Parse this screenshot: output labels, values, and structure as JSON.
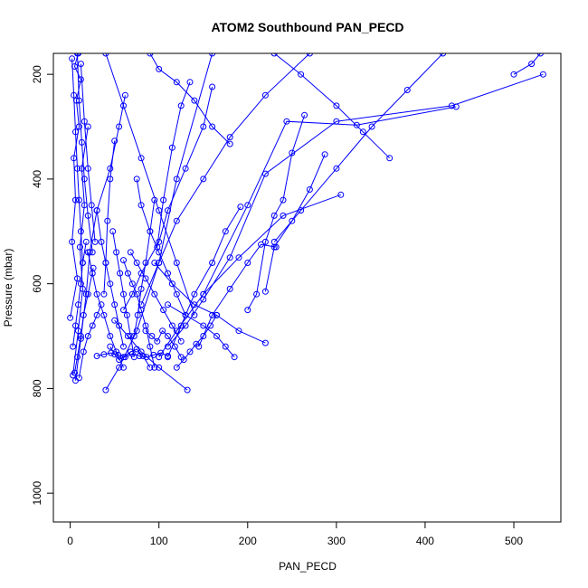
{
  "chart_data": {
    "type": "line",
    "title": "ATOM2 Southbound PAN_PECD",
    "xlabel": "PAN_PECD",
    "ylabel": "Pressure (mbar)",
    "xlim": [
      -19,
      553
    ],
    "ylim": [
      1055,
      160
    ],
    "y_reversed": true,
    "grid": false,
    "legend": "none",
    "x_ticks": [
      0,
      100,
      200,
      300,
      400,
      500
    ],
    "y_ticks": [
      200,
      400,
      600,
      800,
      1000
    ],
    "series_color": "#0000ff",
    "marker": "open-circle",
    "series": [
      {
        "x": [
          0,
          8,
          2,
          6,
          4,
          10,
          7,
          12,
          5,
          9
        ],
        "y": [
          665,
          590,
          520,
          440,
          360,
          300,
          250,
          210,
          185,
          160
        ]
      },
      {
        "x": [
          3,
          9,
          14,
          11,
          16,
          13,
          20
        ],
        "y": [
          775,
          690,
          610,
          530,
          450,
          380,
          300
        ]
      },
      {
        "x": [
          6,
          12,
          18,
          22,
          30,
          45,
          55,
          62
        ],
        "y": [
          785,
          705,
          620,
          540,
          460,
          380,
          300,
          240
        ]
      },
      {
        "x": [
          40,
          55,
          75,
          100,
          120,
          160
        ],
        "y": [
          803,
          760,
          690,
          560,
          400,
          160
        ]
      },
      {
        "x": [
          132,
          100,
          80,
          65,
          50
        ],
        "y": [
          803,
          760,
          730,
          700,
          670
        ]
      },
      {
        "x": [
          533,
          430,
          300,
          220,
          180,
          150,
          130,
          110
        ],
        "y": [
          200,
          260,
          290,
          390,
          550,
          630,
          680,
          720
        ]
      },
      {
        "x": [
          435,
          323,
          244,
          200,
          150
        ],
        "y": [
          262,
          297,
          290,
          450,
          620
        ]
      },
      {
        "x": [
          305,
          240,
          190,
          150,
          120,
          100
        ],
        "y": [
          430,
          470,
          550,
          620,
          690,
          740
        ]
      },
      {
        "x": [
          220,
          190,
          165,
          140,
          115,
          95
        ],
        "y": [
          713,
          690,
          660,
          640,
          600,
          560
        ]
      },
      {
        "x": [
          264,
          250,
          240,
          230,
          220,
          210,
          200
        ],
        "y": [
          278,
          350,
          440,
          470,
          520,
          620,
          650
        ]
      },
      {
        "x": [
          287,
          270,
          250,
          230,
          220
        ],
        "y": [
          353,
          420,
          480,
          530,
          615
        ]
      },
      {
        "x": [
          180,
          160,
          140,
          120,
          100,
          90
        ],
        "y": [
          333,
          300,
          250,
          215,
          190,
          160
        ]
      },
      {
        "x": [
          160,
          150,
          130,
          110,
          100,
          80,
          70,
          60
        ],
        "y": [
          224,
          300,
          380,
          460,
          520,
          580,
          620,
          650
        ]
      },
      {
        "x": [
          135,
          125,
          115,
          105,
          98
        ],
        "y": [
          215,
          260,
          340,
          440,
          530
        ]
      },
      {
        "x": [
          192,
          175,
          160,
          140,
          125,
          110
        ],
        "y": [
          453,
          500,
          560,
          620,
          680,
          740
        ]
      },
      {
        "x": [
          232,
          215,
          200,
          180,
          160,
          145
        ],
        "y": [
          530,
          525,
          560,
          610,
          660,
          720
        ]
      },
      {
        "x": [
          50,
          45,
          42,
          40,
          38
        ],
        "y": [
          327,
          400,
          480,
          560,
          620
        ]
      },
      {
        "x": [
          75,
          80,
          90,
          100,
          110,
          120,
          130
        ],
        "y": [
          400,
          450,
          500,
          540,
          580,
          620,
          660
        ]
      },
      {
        "x": [
          95,
          90,
          85,
          80,
          76,
          72
        ],
        "y": [
          440,
          500,
          560,
          610,
          660,
          700
        ]
      },
      {
        "x": [
          30,
          35,
          40,
          45,
          50,
          55,
          60
        ],
        "y": [
          460,
          520,
          560,
          600,
          640,
          680,
          720
        ]
      },
      {
        "x": [
          20,
          25,
          30,
          38,
          45,
          52,
          60
        ],
        "y": [
          540,
          580,
          620,
          660,
          700,
          730,
          760
        ]
      },
      {
        "x": [
          60,
          65,
          70,
          75,
          80,
          85,
          90,
          95
        ],
        "y": [
          555,
          580,
          600,
          620,
          650,
          680,
          720,
          760
        ]
      },
      {
        "x": [
          45,
          50,
          55,
          60,
          68,
          75,
          82,
          90
        ],
        "y": [
          720,
          735,
          745,
          740,
          730,
          725,
          738,
          760
        ]
      },
      {
        "x": [
          120,
          128,
          135,
          142,
          150,
          158,
          165
        ],
        "y": [
          760,
          745,
          730,
          715,
          700,
          680,
          660
        ]
      },
      {
        "x": [
          30,
          38,
          46,
          54,
          62,
          70,
          78,
          86,
          94,
          102,
          110
        ],
        "y": [
          738,
          735,
          732,
          736,
          740,
          734,
          738,
          740,
          736,
          732,
          738
        ]
      },
      {
        "x": [
          10,
          15,
          20,
          25,
          30,
          35
        ],
        "y": [
          780,
          730,
          700,
          680,
          660,
          640
        ]
      },
      {
        "x": [
          5,
          8,
          12,
          15,
          20,
          26
        ],
        "y": [
          770,
          740,
          700,
          660,
          620,
          570
        ]
      },
      {
        "x": [
          3,
          6,
          9,
          12,
          14,
          18
        ],
        "y": [
          720,
          680,
          640,
          600,
          560,
          520
        ]
      },
      {
        "x": [
          8,
          10,
          13,
          16,
          20,
          25
        ],
        "y": [
          160,
          250,
          330,
          400,
          470,
          540
        ]
      },
      {
        "x": [
          12,
          16,
          20,
          24,
          28
        ],
        "y": [
          180,
          290,
          380,
          450,
          520
        ]
      },
      {
        "x": [
          2,
          4,
          6,
          8,
          10,
          12,
          14
        ],
        "y": [
          170,
          240,
          310,
          380,
          440,
          500,
          560
        ]
      },
      {
        "x": [
          40,
          60,
          80,
          100,
          120,
          140
        ],
        "y": [
          160,
          260,
          360,
          460,
          560,
          660
        ]
      },
      {
        "x": [
          270,
          220,
          180,
          150,
          120,
          100,
          80
        ],
        "y": [
          160,
          240,
          320,
          400,
          480,
          560,
          640
        ]
      },
      {
        "x": [
          230,
          260,
          300,
          330,
          360
        ],
        "y": [
          160,
          200,
          260,
          310,
          360
        ]
      },
      {
        "x": [
          420,
          380,
          340,
          300,
          260,
          230
        ],
        "y": [
          160,
          230,
          300,
          380,
          460,
          520
        ]
      },
      {
        "x": [
          530,
          520,
          500
        ],
        "y": [
          160,
          180,
          200
        ]
      },
      {
        "x": [
          110,
          130,
          150,
          165,
          175,
          185
        ],
        "y": [
          640,
          660,
          680,
          700,
          720,
          740
        ]
      },
      {
        "x": [
          68,
          75,
          85,
          95,
          105,
          115,
          125
        ],
        "y": [
          540,
          560,
          590,
          620,
          650,
          680,
          710
        ]
      },
      {
        "x": [
          48,
          52,
          56,
          60,
          64,
          68,
          72
        ],
        "y": [
          500,
          540,
          580,
          620,
          660,
          700,
          740
        ]
      },
      {
        "x": [
          85,
          92,
          98,
          104,
          110,
          118,
          125
        ],
        "y": [
          690,
          700,
          710,
          690,
          700,
          720,
          740
        ]
      }
    ]
  }
}
